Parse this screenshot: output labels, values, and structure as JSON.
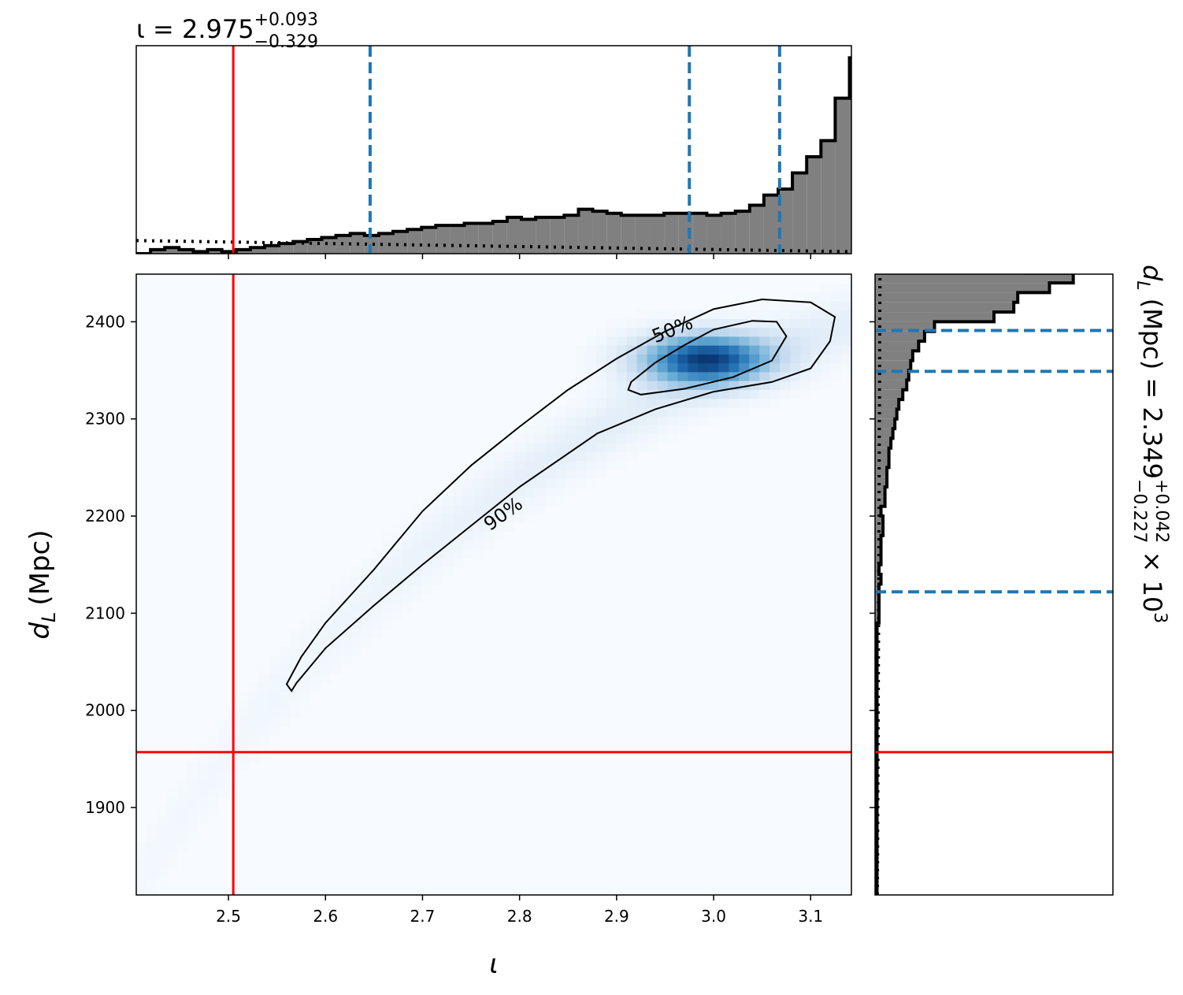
{
  "colors": {
    "hist_fill": "#808080",
    "hist_edge": "#000000",
    "truth": "#ff0000",
    "quantile": "#1f77b4",
    "prior": "#000000",
    "density_low": "#f7fbff",
    "density_high": "#08306b",
    "contour": "#000000"
  },
  "chart_data": [
    {
      "id": "top-marginal",
      "type": "histogram",
      "parameter": "ι",
      "title": {
        "prefix": "ι = 2.975",
        "sup": "+0.093",
        "sub": "−0.329"
      },
      "xlim": [
        2.405,
        3.142
      ],
      "xticks": [
        2.5,
        2.6,
        2.7,
        2.8,
        2.9,
        3.0,
        3.1
      ],
      "truth": 2.505,
      "quantiles": [
        2.646,
        2.975,
        3.068
      ],
      "bin_edges_start": 2.405,
      "bin_width": 0.0147,
      "counts": [
        0.0,
        0.02,
        0.03,
        0.02,
        0.01,
        0.02,
        0.01,
        0.02,
        0.03,
        0.04,
        0.05,
        0.06,
        0.07,
        0.08,
        0.09,
        0.1,
        0.09,
        0.1,
        0.11,
        0.12,
        0.13,
        0.14,
        0.14,
        0.15,
        0.15,
        0.16,
        0.18,
        0.17,
        0.18,
        0.18,
        0.19,
        0.22,
        0.21,
        0.2,
        0.19,
        0.19,
        0.19,
        0.2,
        0.2,
        0.2,
        0.19,
        0.2,
        0.21,
        0.24,
        0.29,
        0.32,
        0.4,
        0.48,
        0.56,
        0.77,
        0.97,
        0.99,
        1.0,
        0.83,
        0.74,
        0.62,
        0.52,
        0.32,
        0.15,
        0.09,
        0.05,
        0.02
      ],
      "prior_level": 0.065,
      "ylim": [
        0,
        1.03
      ]
    },
    {
      "id": "main-2d",
      "type": "heatmap",
      "xlabel": "ι",
      "ylabel_math": "d",
      "ylabel_sub": "L",
      "ylabel_unit": "(Mpc)",
      "xlim": [
        2.405,
        3.142
      ],
      "ylim": [
        1810,
        2449
      ],
      "xticks": [
        2.5,
        2.6,
        2.7,
        2.8,
        2.9,
        3.0,
        3.1
      ],
      "yticks": [
        1900,
        2000,
        2100,
        2200,
        2300,
        2400
      ],
      "truth_x": 2.505,
      "truth_y": 1957,
      "contour_labels": [
        "50%",
        "90%"
      ],
      "contour_50": [
        [
          2.915,
          2.338
        ],
        [
          2.94,
          2.358
        ],
        [
          2.97,
          2.376
        ],
        [
          3.0,
          2.392
        ],
        [
          3.04,
          2.401
        ],
        [
          3.065,
          2.4
        ],
        [
          3.075,
          2.385
        ],
        [
          3.06,
          2.36
        ],
        [
          3.02,
          2.343
        ],
        [
          2.97,
          2.331
        ],
        [
          2.925,
          2.325
        ],
        [
          2.912,
          2.33
        ]
      ],
      "contour_90": [
        [
          2.56,
          2.027
        ],
        [
          2.575,
          2.055
        ],
        [
          2.6,
          2.09
        ],
        [
          2.65,
          2.145
        ],
        [
          2.7,
          2.205
        ],
        [
          2.75,
          2.252
        ],
        [
          2.8,
          2.292
        ],
        [
          2.85,
          2.33
        ],
        [
          2.9,
          2.362
        ],
        [
          2.95,
          2.39
        ],
        [
          3.0,
          2.413
        ],
        [
          3.05,
          2.423
        ],
        [
          3.1,
          2.42
        ],
        [
          3.125,
          2.405
        ],
        [
          3.12,
          2.38
        ],
        [
          3.1,
          2.352
        ],
        [
          3.06,
          2.338
        ],
        [
          3.0,
          2.328
        ],
        [
          2.94,
          2.31
        ],
        [
          2.88,
          2.285
        ],
        [
          2.8,
          2.23
        ],
        [
          2.75,
          2.19
        ],
        [
          2.7,
          2.15
        ],
        [
          2.65,
          2.108
        ],
        [
          2.6,
          2.064
        ],
        [
          2.57,
          2.028
        ],
        [
          2.565,
          2.02
        ]
      ],
      "peak": [
        2.99,
        2.362
      ]
    },
    {
      "id": "right-marginal",
      "type": "histogram",
      "orientation": "horizontal",
      "parameter": "d_L",
      "title": {
        "prefix_math": "d",
        "prefix_sub": "L",
        "prefix_rest": " (Mpc) = 2.349",
        "sup": "+0.042",
        "sub": "−0.227",
        "suffix": " × 10",
        "exp": "3"
      },
      "ylim": [
        1810,
        2449
      ],
      "yticks": [
        1900,
        2000,
        2100,
        2200,
        2300,
        2400
      ],
      "truth": 1957,
      "quantiles": [
        2122,
        2349,
        2391
      ],
      "bin_edges_start": 1810,
      "bin_width": 10,
      "counts": [
        0.01,
        0.01,
        0.01,
        0.01,
        0.01,
        0.01,
        0.01,
        0.01,
        0.01,
        0.01,
        0.01,
        0.01,
        0.01,
        0.01,
        0.01,
        0.01,
        0.01,
        0.01,
        0.01,
        0.01,
        0.01,
        0.01,
        0.01,
        0.01,
        0.01,
        0.01,
        0.01,
        0.01,
        0.02,
        0.02,
        0.02,
        0.02,
        0.03,
        0.02,
        0.03,
        0.03,
        0.03,
        0.04,
        0.04,
        0.03,
        0.05,
        0.05,
        0.06,
        0.06,
        0.07,
        0.07,
        0.08,
        0.09,
        0.1,
        0.11,
        0.12,
        0.14,
        0.16,
        0.17,
        0.18,
        0.19,
        0.22,
        0.25,
        0.3,
        0.6,
        0.7,
        0.72,
        0.88,
        1.0,
        0.76,
        0.42,
        0.05,
        0.0
      ],
      "prior_level": 0.025,
      "xlim": [
        0,
        1.2
      ]
    }
  ]
}
